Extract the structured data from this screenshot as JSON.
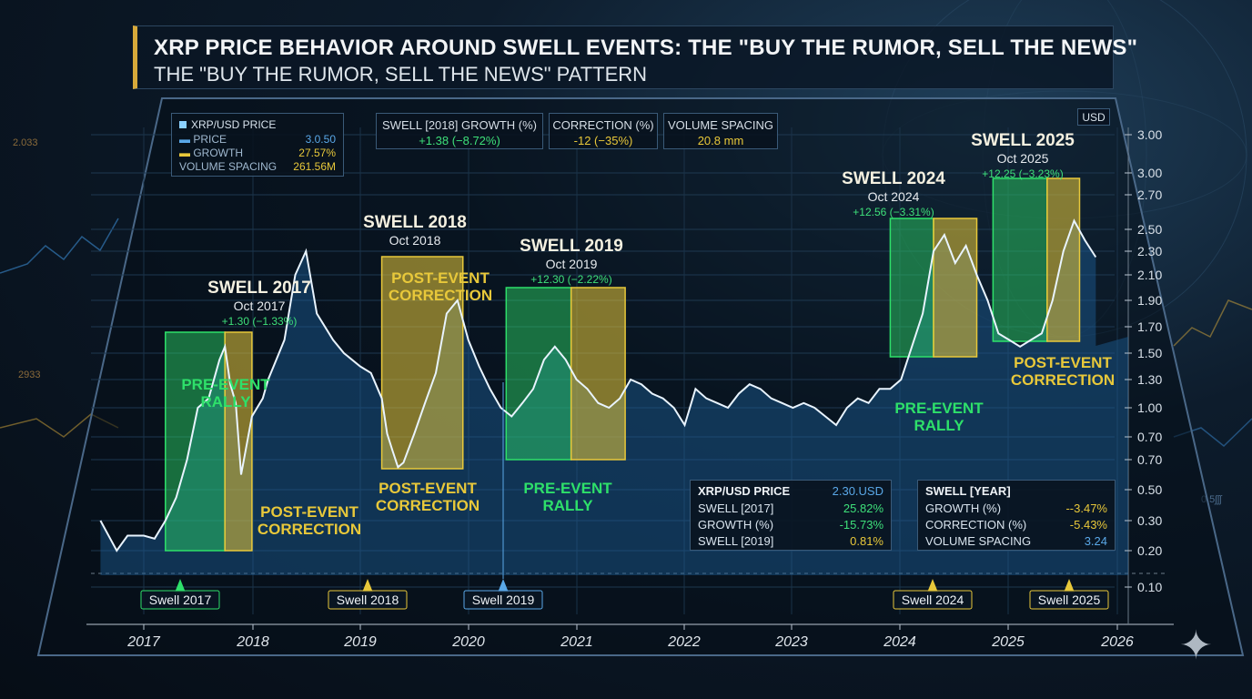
{
  "header": {
    "title": "XRP PRICE BEHAVIOR AROUND SWELL EVENTS: THE \"BUY THE RUMOR, SELL THE NEWS\"",
    "subtitle": "THE \"BUY THE RUMOR, SELL THE NEWS\" PATTERN"
  },
  "colors": {
    "rally": "#2ee06a",
    "correction": "#e8c83a",
    "price_line": "#e9f4ff",
    "area": "#1d5f9a",
    "accent": "#d7a93a"
  },
  "legend": {
    "title": "XRP/USD PRICE",
    "rows": [
      {
        "label": "PRICE",
        "value": "3.0.50"
      },
      {
        "label": "GROWTH",
        "value": "27.57%"
      },
      {
        "label": "VOLUME SPACING",
        "value": "261.56M"
      }
    ]
  },
  "metrics": [
    {
      "label": "SWELL [2018] GROWTH (%)",
      "value": "+1.38 (−8.72%)"
    },
    {
      "label": "CORRECTION (%)",
      "value": "-12 (−35%)"
    },
    {
      "label": "VOLUME SPACING",
      "value": "20.8 mm"
    }
  ],
  "unit_label": "USD",
  "watermark_icon": "sparkle-icon",
  "chart_data": {
    "type": "line",
    "x_ticks": [
      "2017",
      "2018",
      "2019",
      "2020",
      "2021",
      "2022",
      "2023",
      "2024",
      "2025",
      "2026"
    ],
    "y_ticks": [
      "3.00",
      "3.00",
      "2.70",
      "2.50",
      "2.30",
      "2.10",
      "1.90",
      "1.70",
      "1.50",
      "1.30",
      "1.00",
      "0.70",
      "0.70",
      "0.50",
      "0.30",
      "0.20",
      "0.10"
    ],
    "grid": true,
    "series": [
      {
        "x": [
          2016.6,
          2016.75,
          2016.85,
          2017.0,
          2017.1,
          2017.2,
          2017.3,
          2017.4,
          2017.5,
          2017.6,
          2017.7,
          2017.75,
          2017.8,
          2017.85,
          2017.9,
          2018.0,
          2018.1,
          2018.15,
          2018.2,
          2018.3,
          2018.4,
          2018.5,
          2018.6,
          2018.75,
          2018.85,
          2019.0,
          2019.1,
          2019.2,
          2019.25,
          2019.3,
          2019.35,
          2019.4,
          2019.5,
          2019.6,
          2019.7,
          2019.8,
          2019.9,
          2020.0,
          2020.1,
          2020.2,
          2020.3,
          2020.4,
          2020.5,
          2020.6,
          2020.7,
          2020.8,
          2020.9,
          2021.0,
          2021.1,
          2021.2,
          2021.3,
          2021.4,
          2021.5,
          2021.6,
          2021.7,
          2021.8,
          2021.9,
          2022.0,
          2022.1,
          2022.2,
          2022.3,
          2022.4,
          2022.5,
          2022.6,
          2022.7,
          2022.8,
          2022.9,
          2023.0,
          2023.1,
          2023.2,
          2023.3,
          2023.4,
          2023.5,
          2023.6,
          2023.7,
          2023.8,
          2023.9,
          2024.0,
          2024.1,
          2024.2,
          2024.3,
          2024.4,
          2024.5,
          2024.6,
          2024.7,
          2024.8,
          2024.9,
          2025.0,
          2025.1,
          2025.2,
          2025.3,
          2025.4,
          2025.5,
          2025.6,
          2025.7,
          2025.8
        ],
        "values": [
          0.3,
          0.2,
          0.25,
          0.25,
          0.24,
          0.3,
          0.45,
          0.7,
          1.0,
          1.1,
          1.45,
          1.55,
          1.25,
          1.05,
          0.6,
          0.95,
          1.1,
          1.3,
          1.4,
          1.6,
          2.1,
          2.3,
          1.8,
          1.6,
          1.5,
          1.4,
          1.35,
          1.1,
          0.85,
          0.75,
          0.65,
          0.68,
          0.85,
          1.05,
          1.35,
          1.8,
          1.9,
          1.6,
          1.4,
          1.2,
          1.0,
          0.95,
          1.05,
          1.2,
          1.45,
          1.55,
          1.45,
          1.3,
          1.2,
          1.05,
          1.0,
          1.1,
          1.3,
          1.25,
          1.15,
          1.1,
          1.0,
          0.9,
          1.2,
          1.1,
          1.05,
          1.0,
          1.15,
          1.25,
          1.2,
          1.1,
          1.05,
          1.0,
          1.05,
          1.0,
          0.95,
          0.9,
          1.0,
          1.1,
          1.05,
          1.2,
          1.2,
          1.3,
          1.55,
          1.8,
          2.3,
          2.45,
          2.2,
          2.35,
          2.1,
          1.9,
          1.65,
          1.6,
          1.55,
          1.6,
          1.65,
          1.9,
          2.3,
          2.55,
          2.4,
          2.25
        ]
      }
    ],
    "events": [
      {
        "name": "SWELL 2017",
        "date": "Oct 2017",
        "change": "+1.30 (−1.33%)",
        "rally": [
          2017.2,
          2017.75
        ],
        "correction": [
          2017.75,
          2018.0
        ],
        "rally_label": "PRE-EVENT\nRALLY",
        "correction_label": "POST-EVENT\nCORRECTION",
        "marker": "Swell 2017",
        "marker_x": 2017.35
      },
      {
        "name": "SWELL 2018",
        "date": "Oct 2018",
        "change": "",
        "rally": null,
        "correction": [
          2019.2,
          2019.95
        ],
        "rally_label": "",
        "correction_label": "POST-EVENT\nCORRECTION",
        "marker": "Swell 2018",
        "marker_x": 2019.05,
        "correction_label2": "POST-EVENT\nCORRECTION"
      },
      {
        "name": "SWELL 2019",
        "date": "Oct 2019",
        "change": "+12.30 (−2.22%)",
        "rally": [
          2020.35,
          2020.95
        ],
        "correction": [
          2020.95,
          2021.45
        ],
        "rally_label": "PRE-EVENT\nRALLY",
        "correction_label": "",
        "marker": "Swell 2019",
        "marker_x": 2020.3
      },
      {
        "name": "SWELL 2024",
        "date": "Oct 2024",
        "change": "+12.56 (−3.31%)",
        "rally": [
          2023.9,
          2024.3
        ],
        "correction": [
          2024.3,
          2024.7
        ],
        "rally_label": "PRE-EVENT\nRALLY",
        "correction_label": "",
        "marker": "Swell 2024",
        "marker_x": 2024.3
      },
      {
        "name": "SWELL 2025",
        "date": "Oct 2025",
        "change": "+12.25 (−3.23%)",
        "rally": [
          2024.85,
          2025.35
        ],
        "correction": [
          2025.35,
          2025.65
        ],
        "rally_label": "",
        "correction_label": "POST-EVENT\nCORRECTION",
        "marker": "Swell 2025",
        "marker_x": 2025.5
      }
    ]
  },
  "panel_left": {
    "header_label": "XRP/USD PRICE",
    "header_value": "2.30.USD",
    "rows": [
      {
        "label": "SWELL [2017]",
        "value": "25.82%"
      },
      {
        "label": "GROWTH (%)",
        "value": "-15.73%"
      },
      {
        "label": "SWELL [2019]",
        "value": "0.81%"
      }
    ]
  },
  "panel_right": {
    "header_label": "SWELL [YEAR]",
    "rows": [
      {
        "label": "GROWTH (%)",
        "value": "--3.47%"
      },
      {
        "label": "CORRECTION (%)",
        "value": "-5.43%"
      },
      {
        "label": "VOLUME SPACING",
        "value": "3.24"
      }
    ]
  },
  "background_numbers": [
    "2.033",
    "2933",
    "0.5ʃʃʃ"
  ]
}
